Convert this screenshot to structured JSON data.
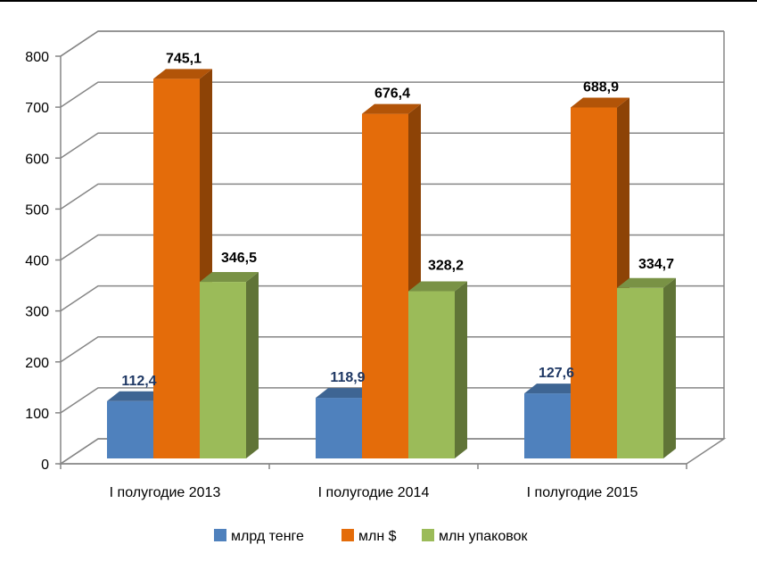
{
  "chart_data": {
    "type": "bar",
    "categories": [
      "I полугодие 2013",
      "I полугодие 2014",
      "I полугодие 2015"
    ],
    "series": [
      {
        "name": "млрд тенге",
        "values": [
          112.4,
          118.9,
          127.6
        ],
        "labels": [
          "112,4",
          "118,9",
          "127,6"
        ],
        "color": "#4f81bd"
      },
      {
        "name": "млн $",
        "values": [
          745.1,
          676.4,
          688.9
        ],
        "labels": [
          "745,1",
          "676,4",
          "688,9"
        ],
        "color": "#e46c0a"
      },
      {
        "name": "млн упаковок",
        "values": [
          346.5,
          328.2,
          334.7
        ],
        "labels": [
          "346,5",
          "328,2",
          "334,7"
        ],
        "color": "#9bbb59"
      }
    ],
    "ylim": [
      0,
      800
    ],
    "yticks": [
      0,
      100,
      200,
      300,
      400,
      500,
      600,
      700,
      800
    ],
    "grid": true,
    "three_d": true,
    "legend_position": "bottom",
    "data_label_colors": {
      "blue_series": "#1f3864",
      "others": "#000000"
    }
  }
}
